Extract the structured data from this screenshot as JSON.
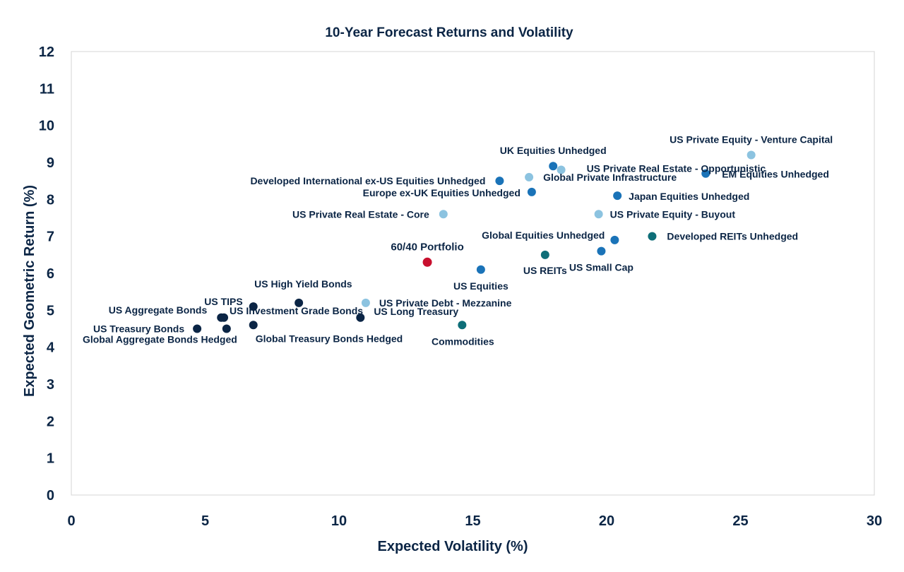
{
  "chart_data": {
    "type": "scatter",
    "title": "10-Year Forecast Returns and Volatility",
    "xlabel": "Expected Volatility (%)",
    "ylabel": "Expected Geometric Return (%)",
    "xlim": [
      0,
      30
    ],
    "ylim": [
      0,
      12
    ],
    "xticks": [
      "0",
      "5",
      "10",
      "15",
      "20",
      "25",
      "30"
    ],
    "yticks": [
      "0",
      "1",
      "2",
      "3",
      "4",
      "5",
      "6",
      "7",
      "8",
      "9",
      "10",
      "11",
      "12"
    ],
    "grid": false,
    "colors": {
      "fixed_income": "#0b2545",
      "equities": "#1a73b8",
      "private": "#8cc3e0",
      "real_assets": "#0e6e78",
      "portfolio": "#c8102e"
    },
    "points": [
      {
        "name": "US Treasury Bonds",
        "x": 4.7,
        "y": 4.5,
        "group": "fixed_income"
      },
      {
        "name": "US Aggregate Bonds",
        "x": 5.6,
        "y": 4.8,
        "group": "fixed_income"
      },
      {
        "name": "Global Aggregate Bonds Hedged",
        "x": 5.8,
        "y": 4.5,
        "group": "fixed_income"
      },
      {
        "name": "US Investment Grade Bonds",
        "x": 5.7,
        "y": 4.8,
        "group": "fixed_income"
      },
      {
        "name": "US TIPS",
        "x": 6.8,
        "y": 5.1,
        "group": "fixed_income"
      },
      {
        "name": "Global Treasury Bonds Hedged",
        "x": 6.8,
        "y": 4.6,
        "group": "fixed_income"
      },
      {
        "name": "US High Yield Bonds",
        "x": 8.5,
        "y": 5.2,
        "group": "fixed_income"
      },
      {
        "name": "US Long Treasury",
        "x": 10.8,
        "y": 4.8,
        "group": "fixed_income"
      },
      {
        "name": "US Private Debt - Mezzanine",
        "x": 11.0,
        "y": 5.2,
        "group": "private"
      },
      {
        "name": "60/40 Portfolio",
        "x": 13.3,
        "y": 6.3,
        "group": "portfolio"
      },
      {
        "name": "US Private Real Estate - Core",
        "x": 13.9,
        "y": 7.6,
        "group": "private"
      },
      {
        "name": "Commodities",
        "x": 14.6,
        "y": 4.6,
        "group": "real_assets"
      },
      {
        "name": "US Equities",
        "x": 15.3,
        "y": 6.1,
        "group": "equities"
      },
      {
        "name": "Developed International ex-US Equities Unhedged",
        "x": 16.0,
        "y": 8.5,
        "group": "equities"
      },
      {
        "name": "Global Private Infrastructure",
        "x": 17.1,
        "y": 8.6,
        "group": "private"
      },
      {
        "name": "Europe ex-UK Equities Unhedged",
        "x": 17.2,
        "y": 8.2,
        "group": "equities"
      },
      {
        "name": "US REITs",
        "x": 17.7,
        "y": 6.5,
        "group": "real_assets"
      },
      {
        "name": "UK Equities Unhedged",
        "x": 18.0,
        "y": 8.9,
        "group": "equities"
      },
      {
        "name": "US Private Real Estate - Opportunistic",
        "x": 18.3,
        "y": 8.8,
        "group": "private"
      },
      {
        "name": "US Private Equity - Buyout",
        "x": 19.7,
        "y": 7.6,
        "group": "private"
      },
      {
        "name": "US Small Cap",
        "x": 19.8,
        "y": 6.6,
        "group": "equities"
      },
      {
        "name": "Global Equities Unhedged",
        "x": 20.3,
        "y": 6.9,
        "group": "equities"
      },
      {
        "name": "Japan Equities Unhedged",
        "x": 20.4,
        "y": 8.1,
        "group": "equities"
      },
      {
        "name": "Developed REITs Unhedged",
        "x": 21.7,
        "y": 7.0,
        "group": "real_assets"
      },
      {
        "name": "EM Equities Unhedged",
        "x": 23.7,
        "y": 8.7,
        "group": "equities"
      },
      {
        "name": "US Private Equity - Venture Capital",
        "x": 25.4,
        "y": 9.2,
        "group": "private"
      }
    ]
  }
}
